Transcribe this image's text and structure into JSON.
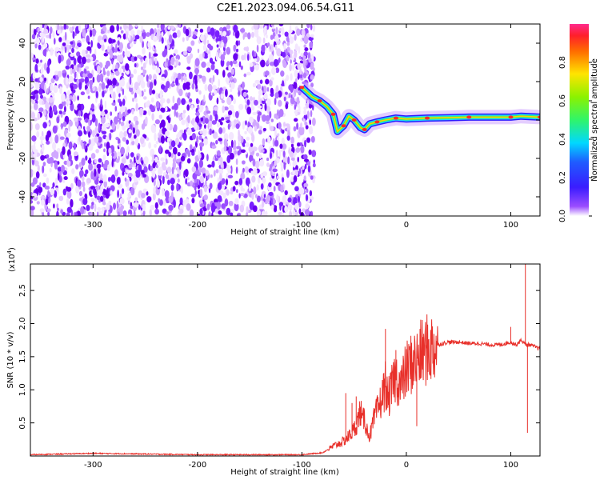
{
  "title": "C2E1.2023.094.06.54.G11",
  "colors": {
    "axes": "#000000",
    "snr_line": "#e8302a",
    "background": "#ffffff"
  },
  "spectrogram": {
    "xlabel": "Height of straight line (km)",
    "ylabel": "Frequency (Hz)",
    "xlim": [
      -360,
      128
    ],
    "ylim": [
      -50,
      50
    ],
    "xticks": [
      -300,
      -200,
      -100,
      0,
      100
    ],
    "yticks": [
      -40,
      -20,
      0,
      20,
      40
    ],
    "noise_region_x": [
      -360,
      -88
    ],
    "echo_trace": [
      [
        -100,
        17
      ],
      [
        -90,
        12
      ],
      [
        -83,
        10
      ],
      [
        -76,
        7
      ],
      [
        -70,
        3
      ],
      [
        -66,
        -6
      ],
      [
        -60,
        -3
      ],
      [
        -55,
        2
      ],
      [
        -50,
        0
      ],
      [
        -44,
        -4
      ],
      [
        -40,
        -5
      ],
      [
        -35,
        -2
      ],
      [
        -28,
        -1
      ],
      [
        -20,
        0
      ],
      [
        -10,
        1
      ],
      [
        0,
        0.5
      ],
      [
        20,
        1
      ],
      [
        40,
        1.2
      ],
      [
        60,
        1.5
      ],
      [
        80,
        1.5
      ],
      [
        100,
        1.5
      ],
      [
        110,
        2
      ],
      [
        128,
        1.5
      ]
    ]
  },
  "colorbar": {
    "label": "Normalized spectral amplitude",
    "ticks": [
      "0.0",
      "0.2",
      "0.4",
      "0.6",
      "0.8"
    ],
    "range": [
      0,
      1
    ]
  },
  "chart_data": [
    {
      "type": "heatmap",
      "title": "C2E1.2023.094.06.54.G11",
      "xlabel": "Height of straight line (km)",
      "ylabel": "Frequency (Hz)",
      "xlim": [
        -360,
        128
      ],
      "ylim": [
        -50,
        50
      ],
      "colorbar_label": "Normalized spectral amplitude",
      "colorbar_range": [
        0,
        1
      ],
      "description_of_data": "echo trace frequency (Hz) vs height (km)",
      "x": [
        -100,
        -90,
        -83,
        -76,
        -70,
        -66,
        -60,
        -55,
        -50,
        -44,
        -40,
        -35,
        -28,
        -20,
        -10,
        0,
        20,
        40,
        60,
        80,
        100,
        110,
        128
      ],
      "y": [
        17,
        12,
        10,
        7,
        3,
        -6,
        -3,
        2,
        0,
        -4,
        -5,
        -2,
        -1,
        0,
        1,
        0.5,
        1,
        1.2,
        1.5,
        1.5,
        1.5,
        2,
        1.5
      ]
    },
    {
      "type": "line",
      "xlabel": "Height of straight line (km)",
      "ylabel": "SNR (10 * v/v)",
      "y_multiplier_label": "(x10",
      "y_multiplier_exp": "4",
      "xlim": [
        -360,
        128
      ],
      "ylim": [
        0,
        2.9
      ],
      "yticks": [
        "0.5",
        "1.0",
        "1.5",
        "2.0",
        "2.5"
      ],
      "xticks": [
        -300,
        -200,
        -100,
        0,
        100
      ],
      "series": [
        {
          "x": [
            -360,
            -300,
            -200,
            -100,
            -80,
            -70,
            -60,
            -55,
            -50,
            -46,
            -44,
            -42,
            -40,
            -38,
            -35,
            -30,
            -25,
            -22,
            -20,
            -18,
            -15,
            -12,
            -10,
            -5,
            0,
            5,
            10,
            15,
            20,
            25,
            30,
            35,
            40,
            50,
            60,
            70,
            80,
            90,
            95,
            100,
            105,
            110,
            113,
            115,
            118,
            128
          ],
          "y": [
            0.02,
            0.04,
            0.02,
            0.02,
            0.05,
            0.15,
            0.22,
            0.3,
            0.4,
            0.55,
            0.7,
            0.5,
            0.6,
            0.4,
            0.3,
            0.6,
            0.8,
            0.95,
            1.1,
            0.85,
            0.95,
            1.15,
            1.2,
            1.05,
            1.3,
            1.4,
            1.45,
            1.55,
            1.6,
            1.63,
            1.68,
            1.7,
            1.72,
            1.72,
            1.7,
            1.7,
            1.68,
            1.68,
            1.7,
            1.72,
            1.68,
            1.75,
            1.7,
            1.68,
            1.68,
            1.62
          ]
        }
      ],
      "spikes": [
        {
          "x": -58,
          "y": 0.95
        },
        {
          "x": -52,
          "y": 0.8
        },
        {
          "x": -48,
          "y": 0.9
        },
        {
          "x": -20,
          "y": 1.92
        },
        {
          "x": -10,
          "y": 1.6
        },
        {
          "x": 10,
          "y": 0.45
        },
        {
          "x": 100,
          "y": 1.95
        },
        {
          "x": 114,
          "y": 2.95
        },
        {
          "x": 116,
          "y": 0.35
        }
      ]
    }
  ]
}
